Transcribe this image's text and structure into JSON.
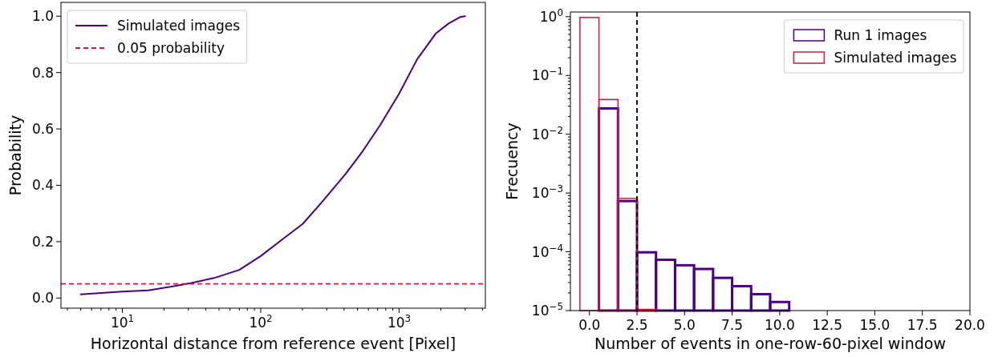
{
  "chart_data": [
    {
      "type": "line",
      "xlabel": "Horizontal distance from reference event [Pixel]",
      "ylabel": "Probability",
      "log": "x",
      "xlim": [
        3.6,
        4200
      ],
      "ylim": [
        -0.036,
        1.049
      ],
      "xticks": [
        {
          "value": 4,
          "label": null
        },
        {
          "value": 5,
          "label": null
        },
        {
          "value": 6,
          "label": null
        },
        {
          "value": 7,
          "label": null
        },
        {
          "value": 8,
          "label": null
        },
        {
          "value": 9,
          "label": null
        },
        {
          "value": 10,
          "label": "10$^{1}$"
        },
        {
          "value": 20,
          "label": null
        },
        {
          "value": 30,
          "label": null
        },
        {
          "value": 40,
          "label": null
        },
        {
          "value": 50,
          "label": null
        },
        {
          "value": 60,
          "label": null
        },
        {
          "value": 70,
          "label": null
        },
        {
          "value": 80,
          "label": null
        },
        {
          "value": 90,
          "label": null
        },
        {
          "value": 100,
          "label": "10$^{2}$"
        },
        {
          "value": 200,
          "label": null
        },
        {
          "value": 300,
          "label": null
        },
        {
          "value": 400,
          "label": null
        },
        {
          "value": 500,
          "label": null
        },
        {
          "value": 600,
          "label": null
        },
        {
          "value": 700,
          "label": null
        },
        {
          "value": 800,
          "label": null
        },
        {
          "value": 900,
          "label": null
        },
        {
          "value": 1000,
          "label": "10$^{3}$"
        },
        {
          "value": 2000,
          "label": null
        },
        {
          "value": 3000,
          "label": null
        },
        {
          "value": 4000,
          "label": null
        }
      ],
      "yticks": [
        {
          "value": 0,
          "label": "0.0"
        },
        {
          "value": 0.2,
          "label": "0.2"
        },
        {
          "value": 0.4,
          "label": "0.4"
        },
        {
          "value": 0.6,
          "label": "0.6"
        },
        {
          "value": 0.8,
          "label": "0.8"
        },
        {
          "value": 1,
          "label": "1.0"
        }
      ],
      "legend": "top left",
      "series": [
        {
          "name": "Simulated images",
          "color": "#4b0082",
          "x": [
            5,
            10,
            15.4,
            23.6,
            31,
            46,
            70,
            100,
            144,
            201,
            281,
            411,
            547,
            728,
            1000,
            1349,
            1837,
            2276,
            2755,
            3000
          ],
          "values": [
            0.013,
            0.023,
            0.027,
            0.042,
            0.053,
            0.071,
            0.1,
            0.149,
            0.209,
            0.263,
            0.344,
            0.441,
            0.522,
            0.613,
            0.725,
            0.847,
            0.938,
            0.974,
            0.997,
            1.0
          ]
        }
      ],
      "ref_lines": [
        {
          "axis": "y",
          "value": 0.05,
          "label": "0.05 probability",
          "color": "#dc143c",
          "line_style": "dashed"
        }
      ]
    },
    {
      "type": "histogram",
      "xlabel": "Number of events in one-row-60-pixel window",
      "ylabel": "Frecuency",
      "log": "y",
      "xlim": [
        -1,
        20
      ],
      "ylim": [
        1e-05,
        1.2
      ],
      "xticks": [
        {
          "value": 0,
          "label": "0.0"
        },
        {
          "value": 2.5,
          "label": "2.5"
        },
        {
          "value": 5,
          "label": "5.0"
        },
        {
          "value": 7.5,
          "label": "7.5"
        },
        {
          "value": 10,
          "label": "10.0"
        },
        {
          "value": 12.5,
          "label": "12.5"
        },
        {
          "value": 15,
          "label": "15.0"
        },
        {
          "value": 17.5,
          "label": "17.5"
        },
        {
          "value": 20,
          "label": "20.0"
        }
      ],
      "yticks": [
        {
          "value": 1e-05,
          "label": "10$^{−5}$"
        },
        {
          "value": 2e-05,
          "label": null
        },
        {
          "value": 3e-05,
          "label": null
        },
        {
          "value": 4e-05,
          "label": null
        },
        {
          "value": 5e-05,
          "label": null
        },
        {
          "value": 6e-05,
          "label": null
        },
        {
          "value": 7e-05,
          "label": null
        },
        {
          "value": 8e-05,
          "label": null
        },
        {
          "value": 9e-05,
          "label": null
        },
        {
          "value": 0.0001,
          "label": "10$^{−4}$"
        },
        {
          "value": 0.0002,
          "label": null
        },
        {
          "value": 0.0003,
          "label": null
        },
        {
          "value": 0.0004,
          "label": null
        },
        {
          "value": 0.0005,
          "label": null
        },
        {
          "value": 0.0006,
          "label": null
        },
        {
          "value": 0.0007,
          "label": null
        },
        {
          "value": 0.0008,
          "label": null
        },
        {
          "value": 0.0009,
          "label": null
        },
        {
          "value": 0.001,
          "label": "10$^{−3}$"
        },
        {
          "value": 0.002,
          "label": null
        },
        {
          "value": 0.003,
          "label": null
        },
        {
          "value": 0.004,
          "label": null
        },
        {
          "value": 0.005,
          "label": null
        },
        {
          "value": 0.006,
          "label": null
        },
        {
          "value": 0.007,
          "label": null
        },
        {
          "value": 0.008,
          "label": null
        },
        {
          "value": 0.009,
          "label": null
        },
        {
          "value": 0.01,
          "label": "10$^{−2}$"
        },
        {
          "value": 0.02,
          "label": null
        },
        {
          "value": 0.03,
          "label": null
        },
        {
          "value": 0.04,
          "label": null
        },
        {
          "value": 0.05,
          "label": null
        },
        {
          "value": 0.06,
          "label": null
        },
        {
          "value": 0.07,
          "label": null
        },
        {
          "value": 0.08,
          "label": null
        },
        {
          "value": 0.09,
          "label": null
        },
        {
          "value": 0.1,
          "label": "10$^{−1}$"
        },
        {
          "value": 0.2,
          "label": null
        },
        {
          "value": 0.3,
          "label": null
        },
        {
          "value": 0.4,
          "label": null
        },
        {
          "value": 0.5,
          "label": null
        },
        {
          "value": 0.6,
          "label": null
        },
        {
          "value": 0.7,
          "label": null
        },
        {
          "value": 0.8,
          "label": null
        },
        {
          "value": 0.9,
          "label": null
        },
        {
          "value": 1,
          "label": "10$^{0}$"
        }
      ],
      "legend": "top right",
      "bins": [
        -0.5,
        0.5,
        1.5,
        2.5,
        3.5,
        4.5,
        5.5,
        6.5,
        7.5,
        8.5,
        9.5,
        10.5
      ],
      "series": [
        {
          "name": "Run 1 images",
          "color": "#4b0082",
          "values": [
            null,
            0.0275,
            0.00073,
            9.8e-05,
            7.3e-05,
            5.9e-05,
            5.1e-05,
            3.6e-05,
            2.6e-05,
            1.9e-05,
            1.4e-05
          ]
        },
        {
          "name": "Simulated images",
          "color": "#dc143c",
          "values": [
            0.97,
            0.039,
            0.00081,
            1.05e-05,
            null,
            null,
            null,
            null,
            null,
            null,
            null
          ]
        }
      ],
      "ref_lines": [
        {
          "axis": "x",
          "value": 2.5,
          "color": "#000000",
          "line_style": "dashed"
        }
      ]
    }
  ]
}
